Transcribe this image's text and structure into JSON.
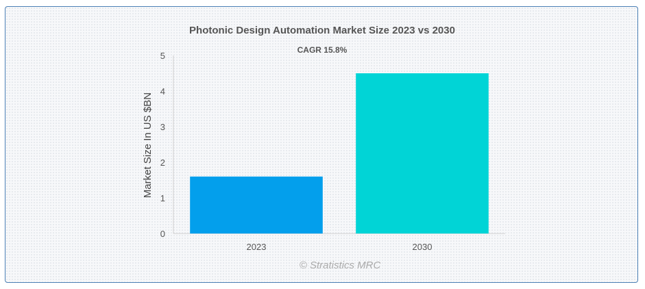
{
  "chart_data": {
    "type": "bar",
    "title": "Photonic Design Automation Market Size 2023 vs 2030",
    "subtitle": "CAGR 15.8%",
    "ylabel": "Market Size In US $BN",
    "xlabel": "",
    "categories": [
      "2023",
      "2030"
    ],
    "values": [
      1.6,
      4.5
    ],
    "colors": [
      "#039fec",
      "#01d4d6"
    ],
    "ylim": [
      0,
      5
    ],
    "yticks": [
      "0",
      "1",
      "2",
      "3",
      "4",
      "5"
    ],
    "grid": false,
    "legend": "none"
  },
  "credit": "© Stratistics MRC"
}
